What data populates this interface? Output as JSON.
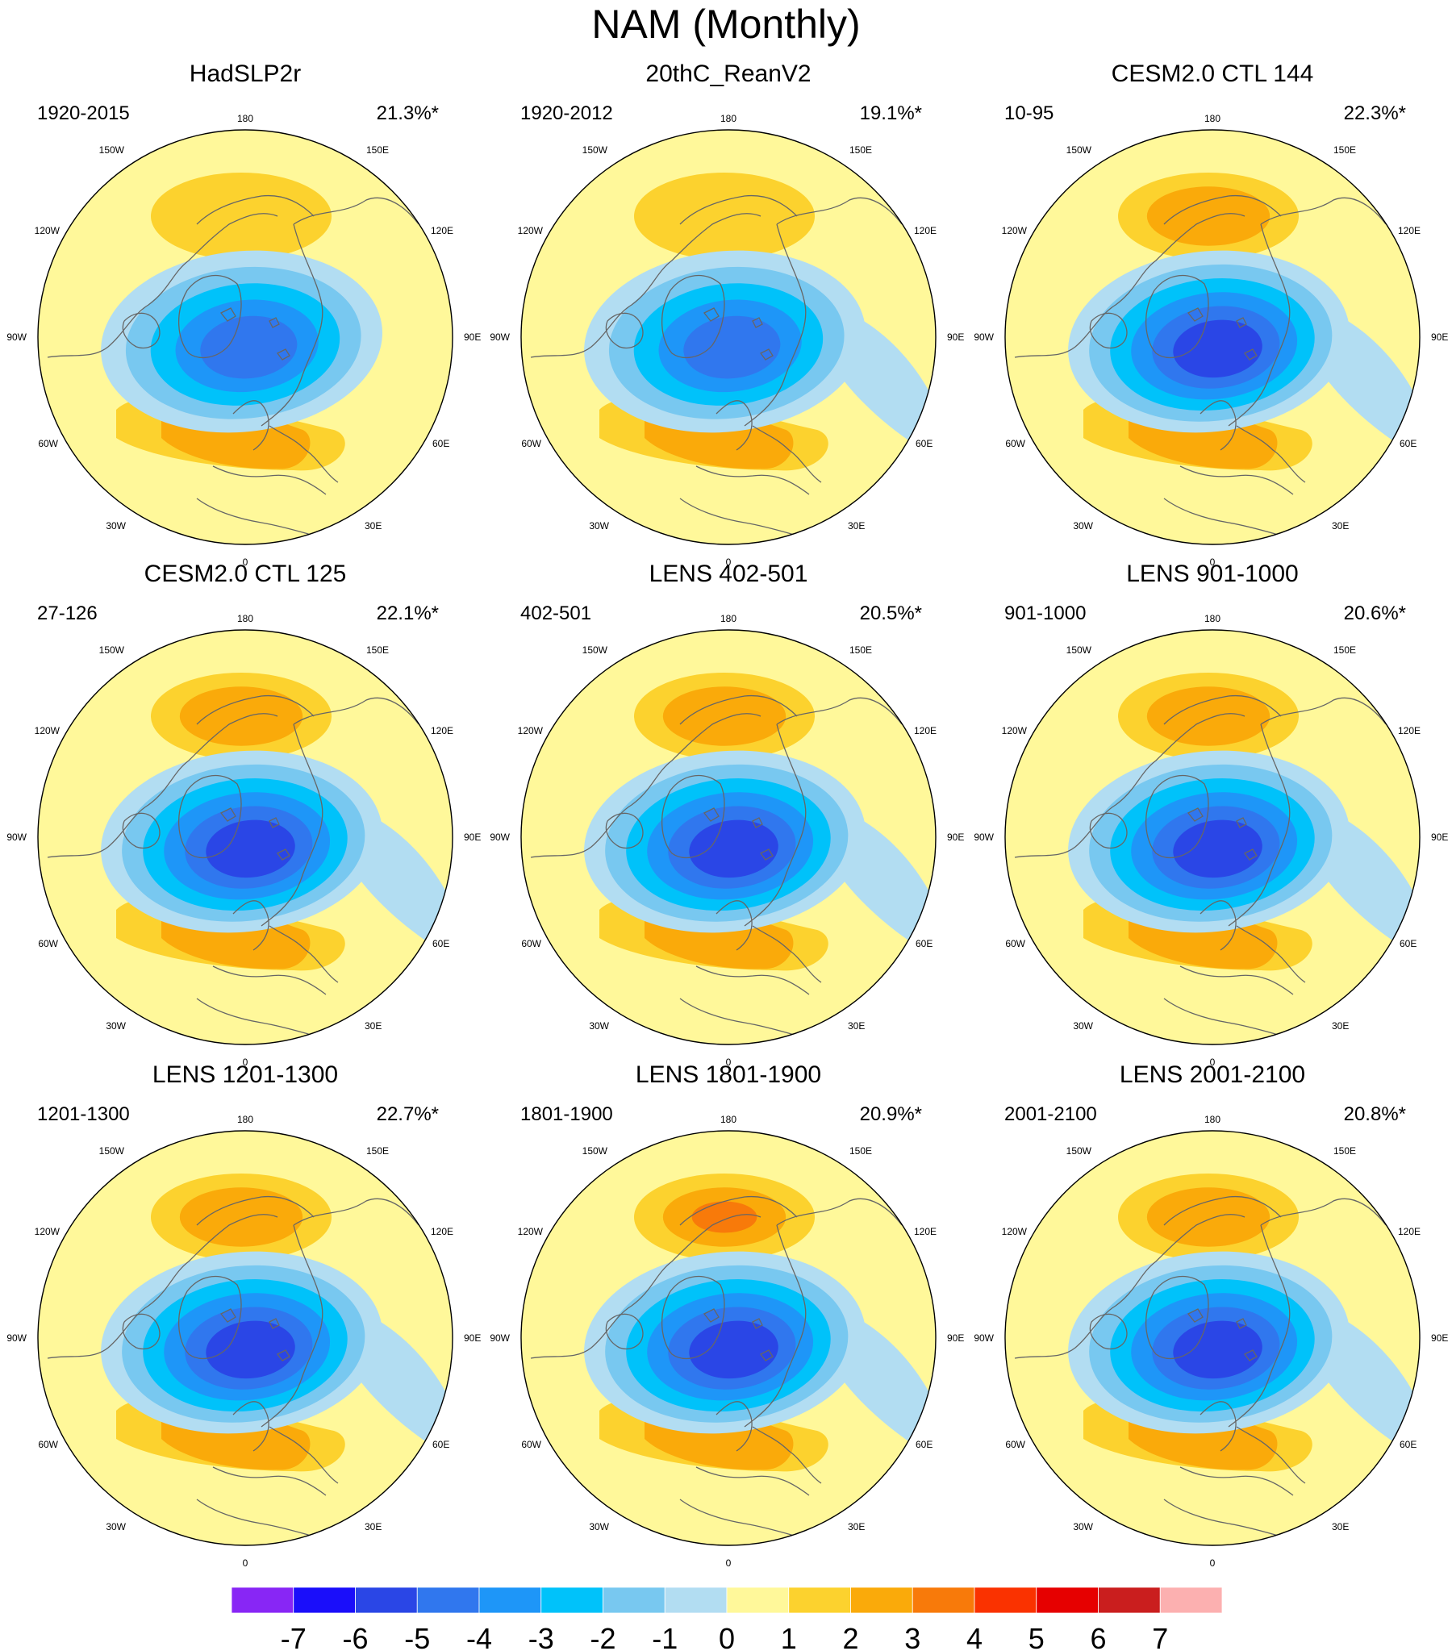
{
  "title": "NAM (Monthly)",
  "lon_labels": {
    "top": "180",
    "bottom": "0",
    "left": "90W",
    "right": "90E",
    "upper_left_2": "150W",
    "upper_left_1": "120W",
    "upper_right_2": "150E",
    "upper_right_1": "120E",
    "lower_left_1": "60W",
    "lower_left_2": "30W",
    "lower_right_1": "60E",
    "lower_right_2": "30E"
  },
  "chart_data": {
    "type": "polar-contour-map",
    "units": "hPa (regression of SLP on NAM index)",
    "panels": [
      {
        "title": "HadSLP2r",
        "years": "1920-2015",
        "variance": "21.3%*",
        "pac_high": 1.5,
        "atl_high": 2.2,
        "low_center": -4.2,
        "eurasia_low": 0.9
      },
      {
        "title": "20thC_ReanV2",
        "years": "1920-2012",
        "variance": "19.1%*",
        "pac_high": 1.8,
        "atl_high": 2.6,
        "low_center": -4.6,
        "eurasia_low": 1.3
      },
      {
        "title": "CESM2.0 CTL 144",
        "years": "10-95",
        "variance": "22.3%*",
        "pac_high": 2.5,
        "atl_high": 2.6,
        "low_center": -5.3,
        "eurasia_low": 1.2
      },
      {
        "title": "CESM2.0 CTL 125",
        "years": "27-126",
        "variance": "22.1%*",
        "pac_high": 2.7,
        "atl_high": 2.8,
        "low_center": -5.4,
        "eurasia_low": 1.1
      },
      {
        "title": "LENS 402-501",
        "years": "402-501",
        "variance": "20.5%*",
        "pac_high": 2.5,
        "atl_high": 2.1,
        "low_center": -5.3,
        "eurasia_low": 1.4
      },
      {
        "title": "LENS 901-1000",
        "years": "901-1000",
        "variance": "20.6%*",
        "pac_high": 2.7,
        "atl_high": 2.0,
        "low_center": -5.2,
        "eurasia_low": 1.4
      },
      {
        "title": "LENS 1201-1300",
        "years": "1201-1300",
        "variance": "22.7%*",
        "pac_high": 2.8,
        "atl_high": 2.0,
        "low_center": -5.7,
        "eurasia_low": 1.4
      },
      {
        "title": "LENS 1801-1900",
        "years": "1801-1900",
        "variance": "20.9%*",
        "pac_high": 3.1,
        "atl_high": 2.4,
        "low_center": -5.4,
        "eurasia_low": 1.5
      },
      {
        "title": "LENS 2001-2100",
        "years": "2001-2100",
        "variance": "20.8%*",
        "pac_high": 2.7,
        "atl_high": 2.0,
        "low_center": -5.4,
        "eurasia_low": 1.5
      }
    ],
    "colorbar": {
      "levels": [
        "-7",
        "-6",
        "-5",
        "-4",
        "-3",
        "-2",
        "-1",
        "0",
        "1",
        "2",
        "3",
        "4",
        "5",
        "6",
        "7"
      ],
      "colors": [
        "#8826f5",
        "#1a0efa",
        "#2a46e6",
        "#3077ee",
        "#1e96f8",
        "#00c2fa",
        "#78c8f0",
        "#b2ddf2",
        "#fff89a",
        "#fcd22e",
        "#faaa0a",
        "#f87a0a",
        "#fa3200",
        "#e60000",
        "#ca1e1e",
        "#fcb0b0"
      ]
    }
  }
}
